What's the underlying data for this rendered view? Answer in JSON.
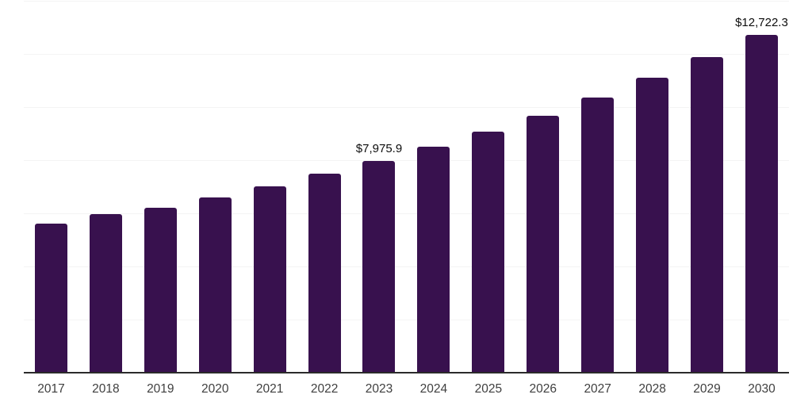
{
  "chart_data": {
    "type": "bar",
    "title": "",
    "xlabel": "",
    "ylabel": "",
    "categories": [
      "2017",
      "2018",
      "2019",
      "2020",
      "2021",
      "2022",
      "2023",
      "2024",
      "2025",
      "2026",
      "2027",
      "2028",
      "2029",
      "2030"
    ],
    "values": [
      5610,
      5970,
      6210,
      6595,
      7015,
      7490,
      7975.9,
      8510,
      9085,
      9680,
      10370,
      11095,
      11870,
      12722.3
    ],
    "data_labels": [
      null,
      null,
      null,
      null,
      null,
      null,
      "$7,975.9",
      null,
      null,
      null,
      null,
      null,
      null,
      "$12,722.3"
    ],
    "ylim": [
      0,
      14000
    ],
    "gridline_step": 2000,
    "grid": true,
    "legend": false,
    "colors": {
      "bar": "#38114E",
      "grid": "#f4f4f4",
      "axis": "#2b2b2b",
      "tick_label": "#3f3f3f",
      "data_label": "#0d0d0d",
      "background": "#ffffff"
    }
  }
}
